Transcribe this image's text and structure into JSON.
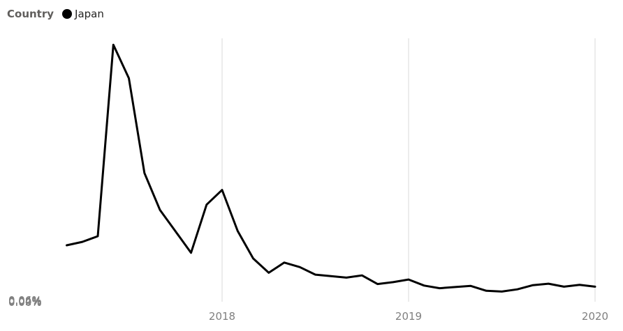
{
  "legend": {
    "title": "Country",
    "items": [
      {
        "label": "Japan",
        "color": "#000000"
      }
    ]
  },
  "chart_data": {
    "type": "line",
    "title": "",
    "xlabel": "",
    "ylabel": "",
    "legend_position": "top-left",
    "grid": {
      "x": true,
      "y": false
    },
    "y_ticks": [
      "0.00%",
      "0.02%",
      "0.04%",
      "0.06%"
    ],
    "x_ticks": [
      "2018",
      "2019",
      "2020"
    ],
    "ylim": [
      0,
      0.07
    ],
    "series": [
      {
        "name": "Japan",
        "color": "#000000",
        "x": [
          "2017-03",
          "2017-04",
          "2017-05",
          "2017-06",
          "2017-07",
          "2017-08",
          "2017-09",
          "2017-10",
          "2017-11",
          "2017-12",
          "2018-01",
          "2018-02",
          "2018-03",
          "2018-04",
          "2018-05",
          "2018-06",
          "2018-07",
          "2018-08",
          "2018-09",
          "2018-10",
          "2018-11",
          "2018-12",
          "2019-01",
          "2019-02",
          "2019-03",
          "2019-04",
          "2019-05",
          "2019-06",
          "2019-07",
          "2019-08",
          "2019-09",
          "2019-10",
          "2019-11",
          "2019-12",
          "2020-01"
        ],
        "values": [
          0.015,
          0.0159,
          0.0174,
          0.0683,
          0.0594,
          0.0342,
          0.0244,
          0.0187,
          0.013,
          0.0258,
          0.0297,
          0.0188,
          0.0115,
          0.0077,
          0.0104,
          0.0092,
          0.0072,
          0.0068,
          0.0064,
          0.007,
          0.0047,
          0.0052,
          0.0059,
          0.0043,
          0.0036,
          0.0039,
          0.0042,
          0.0029,
          0.0027,
          0.0033,
          0.0044,
          0.0048,
          0.004,
          0.0045,
          0.004
        ]
      }
    ]
  }
}
